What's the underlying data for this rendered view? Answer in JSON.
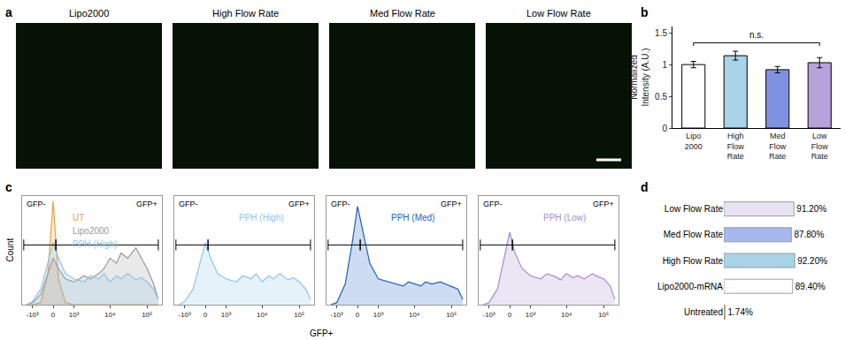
{
  "chart_data": [
    {
      "type": "image",
      "panel_label": "a",
      "titles": [
        "Lipo2000",
        "High Flow Rate",
        "Med Flow Rate",
        "Low Flow Rate"
      ]
    },
    {
      "type": "bar",
      "panel_label": "b",
      "categories": [
        "Lipo 2000",
        "High Flow Rate",
        "Med Flow Rate",
        "Low Flow Rate"
      ],
      "values": [
        1.0,
        1.14,
        0.92,
        1.03
      ],
      "errors": [
        0.05,
        0.07,
        0.05,
        0.08
      ],
      "colors": [
        "#ffffff",
        "#a9d3e6",
        "#7f92e2",
        "#b8a2da"
      ],
      "ylabel": "Normalized Intensity (A.U.)",
      "ylim": [
        0,
        1.6
      ],
      "yticks": [
        0,
        0.5,
        1,
        1.5
      ],
      "annotation": "n.s."
    },
    {
      "type": "line",
      "panel_label": "c",
      "xlabel": "GFP+",
      "ylabel": "Count",
      "x": [
        -1500,
        -1000,
        -500,
        -200,
        0,
        200,
        500,
        1000,
        2000,
        3000,
        5000,
        7000,
        10000,
        15000,
        20000,
        30000,
        50000,
        70000,
        100000,
        150000,
        200000
      ],
      "xlim": [
        -2000,
        250000
      ],
      "xticks": [
        {
          "value": -1000,
          "label": "-10³"
        },
        0,
        {
          "value": 1000,
          "label": "10³"
        },
        {
          "value": 10000,
          "label": "10⁴"
        },
        {
          "value": 100000,
          "label": "10⁵"
        }
      ],
      "ylim": [
        0,
        105
      ],
      "tick_labels": "x",
      "gates": [
        {
          "label": "GFP-",
          "range": [
            -1800,
            100
          ]
        },
        {
          "label": "GFP+",
          "range": [
            100,
            200000
          ]
        }
      ],
      "panels": [
        {
          "series": [
            {
              "name": "UT",
              "color": "#f0a040",
              "values": [
                0,
                0,
                2,
                30,
                100,
                25,
                2,
                0,
                0,
                0,
                0,
                0,
                0,
                0,
                0,
                0,
                0,
                0,
                0,
                0,
                0
              ]
            },
            {
              "name": "Lipo2000",
              "color": "#999999",
              "values": [
                0,
                2,
                10,
                30,
                45,
                35,
                25,
                22,
                28,
                25,
                30,
                35,
                45,
                40,
                50,
                45,
                55,
                45,
                35,
                20,
                5
              ]
            },
            {
              "name": "PPH (High)",
              "color": "#8ec5e8",
              "values": [
                0,
                3,
                15,
                40,
                60,
                45,
                30,
                25,
                22,
                28,
                25,
                30,
                22,
                28,
                25,
                30,
                24,
                26,
                22,
                15,
                5
              ]
            }
          ]
        },
        {
          "series": [
            {
              "name": "PPH (High)",
              "color": "#8ec5e8",
              "values": [
                0,
                3,
                15,
                40,
                60,
                45,
                30,
                25,
                22,
                28,
                25,
                30,
                22,
                28,
                25,
                30,
                24,
                26,
                22,
                15,
                5
              ]
            }
          ]
        },
        {
          "series": [
            {
              "name": "PPH (Med)",
              "color": "#1f5fbf",
              "values": [
                0,
                2,
                20,
                60,
                95,
                70,
                40,
                25,
                22,
                20,
                18,
                22,
                20,
                18,
                22,
                20,
                22,
                20,
                18,
                15,
                5
              ]
            }
          ]
        },
        {
          "series": [
            {
              "name": "PPH (Low)",
              "color": "#a78bcf",
              "values": [
                0,
                2,
                15,
                45,
                70,
                50,
                35,
                28,
                25,
                30,
                27,
                24,
                30,
                26,
                28,
                25,
                30,
                27,
                25,
                18,
                5
              ]
            }
          ]
        }
      ]
    },
    {
      "type": "bar",
      "panel_label": "d",
      "orientation": "horizontal",
      "data_labels": true,
      "tick_labels": "y",
      "categories": [
        "Low Flow Rate",
        "Med Flow Rate",
        "High Flow Rate",
        "Lipo2000-mRNA",
        "Untreated"
      ],
      "values": [
        91.2,
        87.8,
        92.2,
        89.4,
        1.74
      ],
      "value_labels": [
        "91.20%",
        "87.80%",
        "92.20%",
        "89.40%",
        "1.74%"
      ],
      "colors": [
        "#e8e2f2",
        "#a8b8ef",
        "#a9d3e6",
        "#ffffff",
        "#f0c040"
      ],
      "xlim": [
        0,
        100
      ]
    }
  ]
}
